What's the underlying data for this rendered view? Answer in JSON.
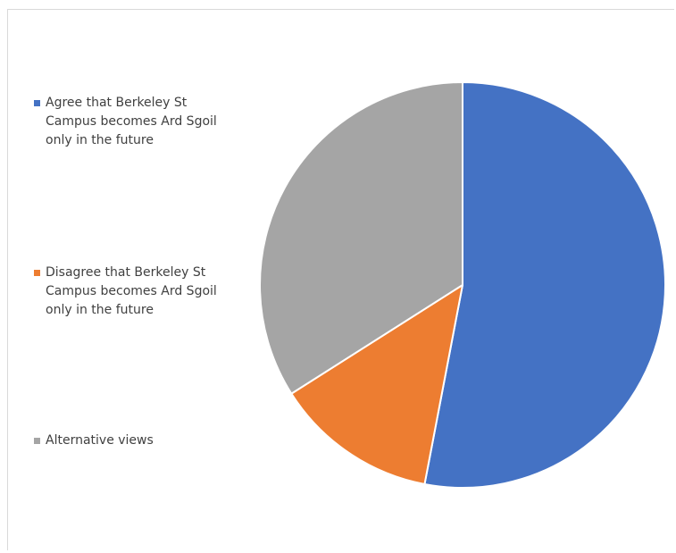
{
  "chart_data": {
    "type": "pie",
    "title": "",
    "slices": [
      {
        "label": "Agree that Berkeley St\nCampus becomes Ard Sgoil\nonly in the future",
        "value": 53,
        "color": "#4472C4"
      },
      {
        "label": "Disagree that Berkeley St\nCampus becomes Ard Sgoil\nonly in the future",
        "value": 13,
        "color": "#ED7D31"
      },
      {
        "label": "Alternative views",
        "value": 34,
        "color": "#A5A5A5"
      }
    ],
    "legend_position": "left",
    "start_angle_degrees": 0,
    "direction": "clockwise"
  }
}
